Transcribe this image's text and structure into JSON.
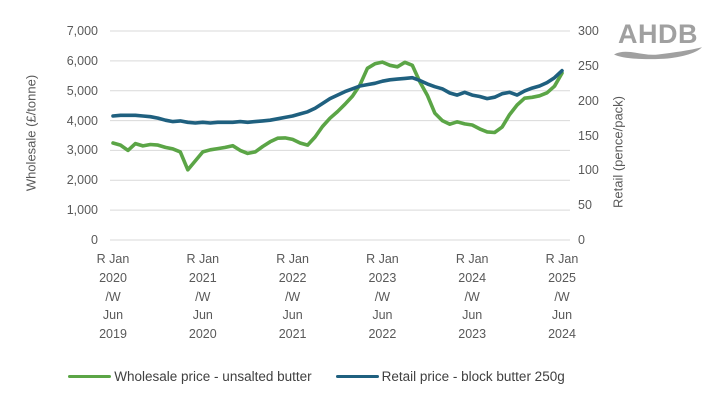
{
  "logo": {
    "text": "AHDB"
  },
  "colors": {
    "grid": "#d9d9d9",
    "tick_text": "#595959",
    "legend_text": "#404040",
    "logo": "#a0a0a0",
    "wholesale_line": "#5ba546",
    "retail_line": "#1f607f"
  },
  "chart_data": {
    "type": "line",
    "title": "",
    "grid": "horizontal",
    "legend_position": "bottom",
    "y_left": {
      "label": "Wholesale (£/tonne)",
      "min": 0,
      "max": 7000,
      "tick_labels": [
        "0",
        "1,000",
        "2,000",
        "3,000",
        "4,000",
        "5,000",
        "6,000",
        "7,000"
      ]
    },
    "y_right": {
      "label": "Retail (pence/pack)",
      "min": 0,
      "max": 300,
      "tick_labels": [
        "0",
        "50",
        "100",
        "150",
        "200",
        "250",
        "300"
      ]
    },
    "x_tick_labels": [
      [
        "R Jan",
        "2020",
        "/W",
        "Jun",
        "2019"
      ],
      [
        "R Jan",
        "2021",
        "/W",
        "Jun",
        "2020"
      ],
      [
        "R Jan",
        "2022",
        "/W",
        "Jun",
        "2021"
      ],
      [
        "R Jan",
        "2023",
        "/W",
        "Jun",
        "2022"
      ],
      [
        "R Jan",
        "2024",
        "/W",
        "Jun",
        "2023"
      ],
      [
        "R Jan",
        "2025",
        "/W",
        "Jun",
        "2024"
      ]
    ],
    "series": [
      {
        "name": "Wholesale price - unsalted butter",
        "axis": "left",
        "color": "#5ba546",
        "values": [
          3250,
          3180,
          3000,
          3230,
          3150,
          3200,
          3180,
          3100,
          3050,
          2950,
          2350,
          2650,
          2950,
          3020,
          3060,
          3100,
          3160,
          3000,
          2900,
          2950,
          3130,
          3290,
          3410,
          3420,
          3370,
          3250,
          3180,
          3450,
          3800,
          4080,
          4300,
          4550,
          4820,
          5190,
          5750,
          5900,
          5960,
          5850,
          5800,
          5950,
          5850,
          5300,
          4850,
          4250,
          4000,
          3880,
          3960,
          3890,
          3850,
          3720,
          3620,
          3600,
          3780,
          4200,
          4520,
          4750,
          4780,
          4830,
          4930,
          5150,
          5590
        ]
      },
      {
        "name": "Retail price - block butter 250g",
        "axis": "right",
        "color": "#1f607f",
        "values": [
          178,
          179,
          179,
          179,
          178,
          177,
          175,
          172,
          170,
          171,
          169,
          168,
          169,
          168,
          169,
          169,
          169,
          170,
          169,
          170,
          171,
          172,
          174,
          176,
          178,
          181,
          184,
          189,
          196,
          203,
          208,
          213,
          217,
          221,
          223,
          225,
          228,
          230,
          231,
          232,
          233,
          229,
          224,
          220,
          217,
          211,
          208,
          212,
          208,
          206,
          203,
          205,
          210,
          212,
          208,
          214,
          218,
          221,
          226,
          233,
          243
        ]
      }
    ]
  }
}
